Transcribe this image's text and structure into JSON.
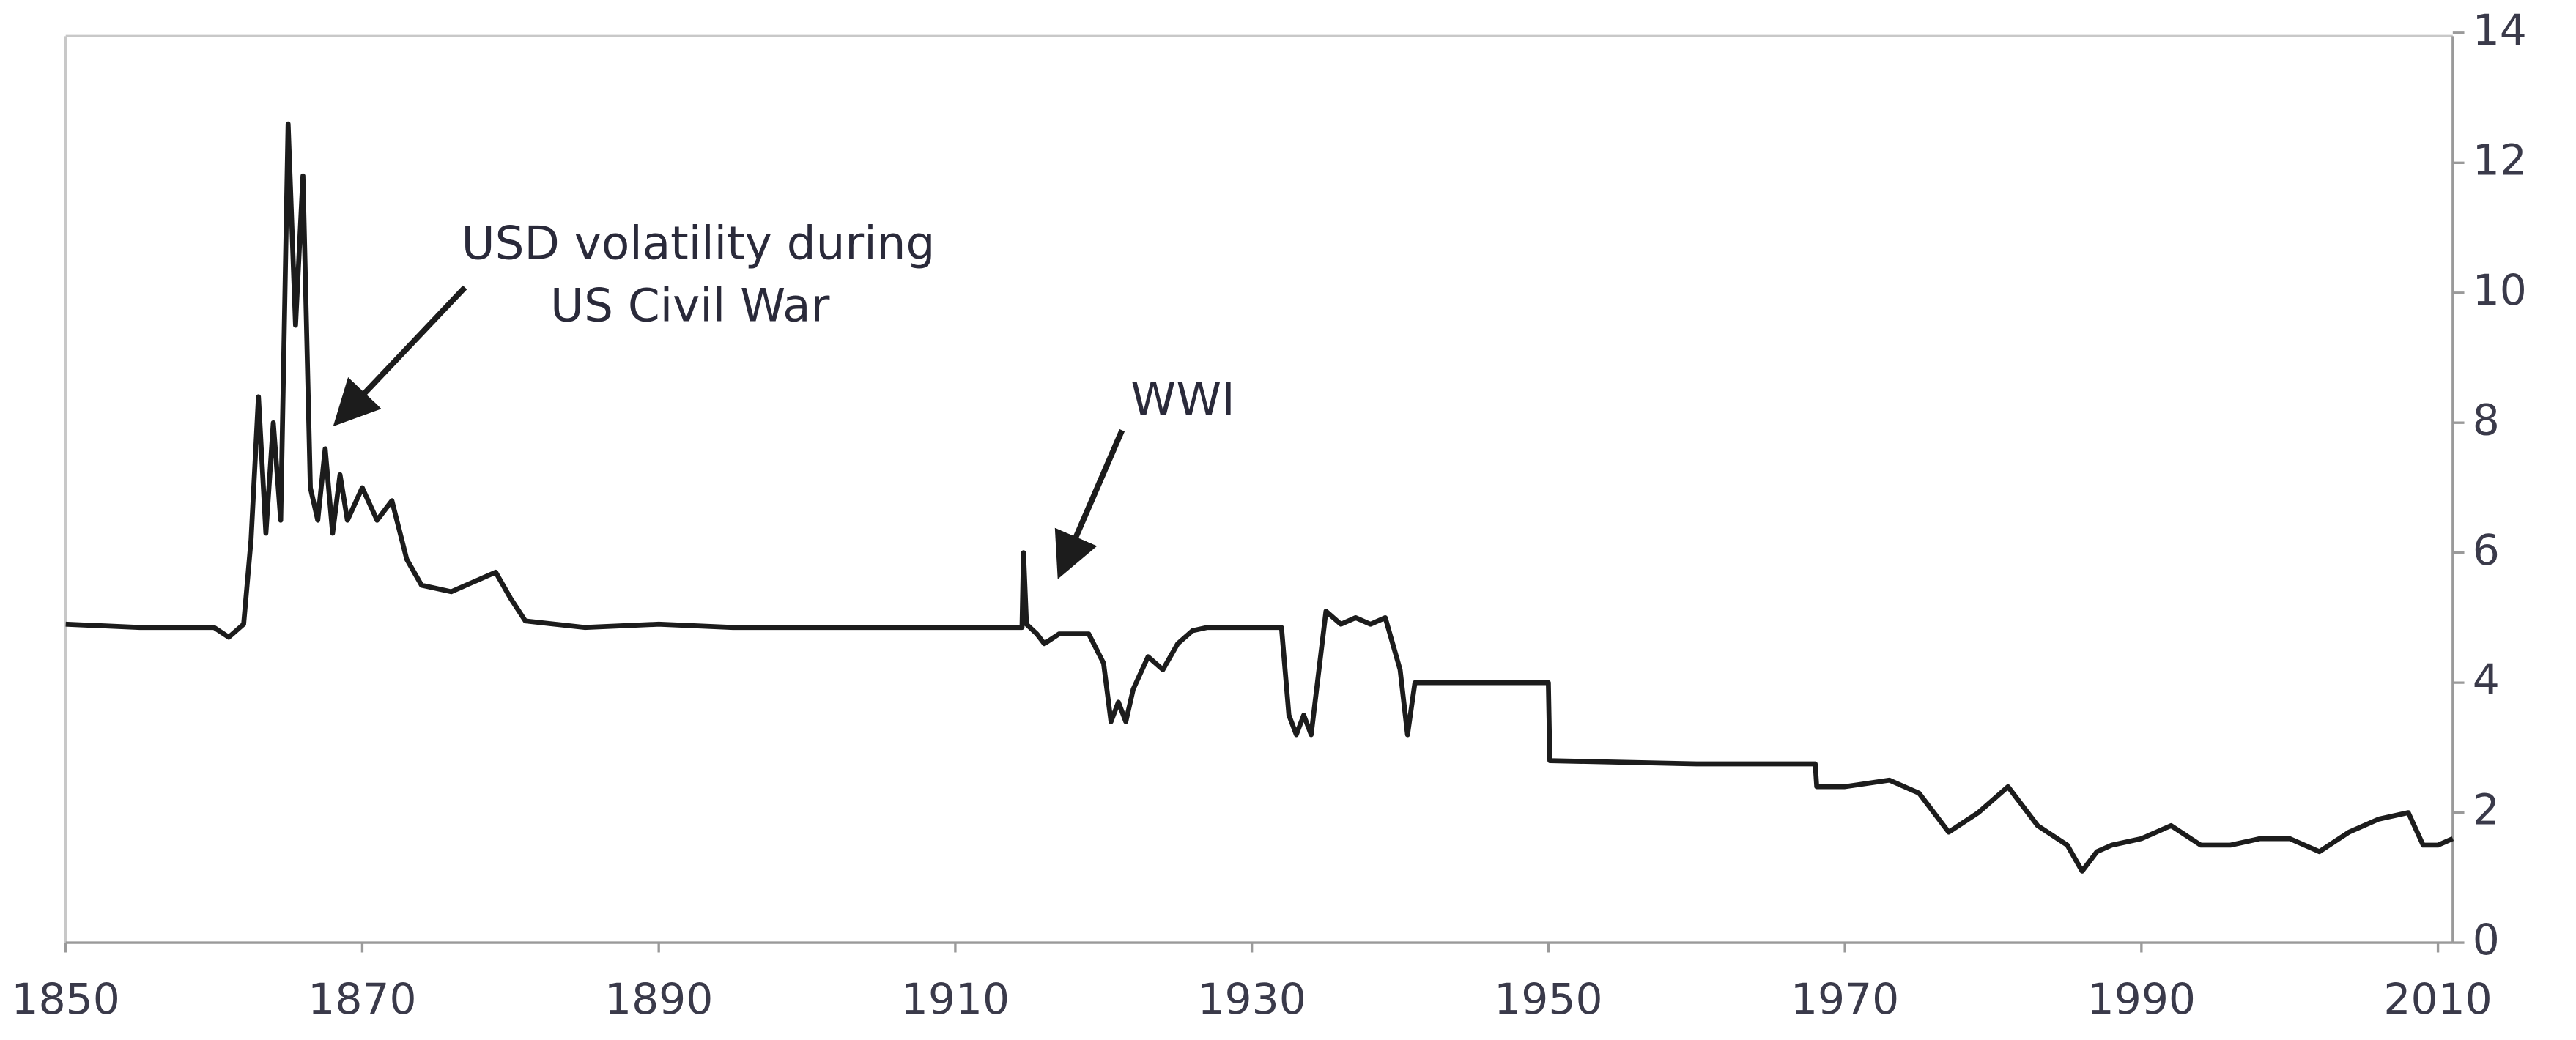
{
  "chart_data": {
    "type": "line",
    "annotations": [
      {
        "lines": [
          "USD volatility during",
          "US Civil War"
        ]
      },
      {
        "lines": [
          "WWI"
        ]
      }
    ],
    "x": [
      1850,
      1855,
      1860,
      1861,
      1862,
      1862.5,
      1863,
      1863.5,
      1864,
      1864.5,
      1865,
      1865.5,
      1866,
      1866.5,
      1867,
      1867.5,
      1868,
      1868.5,
      1869,
      1870,
      1871,
      1872,
      1873,
      1874,
      1876,
      1878,
      1879,
      1880,
      1881,
      1885,
      1890,
      1895,
      1900,
      1905,
      1910,
      1914.5,
      1914.6,
      1914.8,
      1915.5,
      1916,
      1917,
      1919,
      1920,
      1920.5,
      1921,
      1921.5,
      1922,
      1923,
      1924,
      1925,
      1926,
      1927,
      1932,
      1932.5,
      1933,
      1933.5,
      1934,
      1935,
      1936,
      1937,
      1938,
      1939,
      1940,
      1940.5,
      1941,
      1950,
      1950.1,
      1960,
      1968,
      1968.1,
      1970,
      1973,
      1975,
      1977,
      1979,
      1981,
      1983,
      1985,
      1986,
      1987,
      1988,
      1990,
      1992,
      1994,
      1996,
      1998,
      2000,
      2002,
      2004,
      2006,
      2008,
      2009,
      2010,
      2011
    ],
    "series": [
      {
        "color": "#1c1c1c",
        "values": [
          4.9,
          4.85,
          4.85,
          4.7,
          4.9,
          6.2,
          8.4,
          6.3,
          8.0,
          6.5,
          12.6,
          9.5,
          11.8,
          7.0,
          6.5,
          7.6,
          6.3,
          7.2,
          6.5,
          7.0,
          6.5,
          6.8,
          5.9,
          5.5,
          5.4,
          5.6,
          5.7,
          5.3,
          4.95,
          4.85,
          4.9,
          4.85,
          4.85,
          4.85,
          4.85,
          4.85,
          6.0,
          4.9,
          4.75,
          4.6,
          4.75,
          4.75,
          4.3,
          3.4,
          3.7,
          3.4,
          3.9,
          4.4,
          4.2,
          4.6,
          4.8,
          4.85,
          4.85,
          3.5,
          3.2,
          3.5,
          3.2,
          5.1,
          4.9,
          5.0,
          4.9,
          5.0,
          4.2,
          3.2,
          4.0,
          4.0,
          2.8,
          2.75,
          2.75,
          2.4,
          2.4,
          2.5,
          2.3,
          1.7,
          2.0,
          2.4,
          1.8,
          1.5,
          1.1,
          1.4,
          1.5,
          1.6,
          1.8,
          1.5,
          1.5,
          1.6,
          1.6,
          1.4,
          1.7,
          1.9,
          2.0,
          1.5,
          1.5,
          1.6
        ]
      }
    ],
    "xlim": [
      1850,
      2011
    ],
    "xticks": [
      1850,
      1870,
      1890,
      1910,
      1930,
      1950,
      1970,
      1990,
      2010
    ],
    "ylim": [
      0,
      14
    ],
    "yticks": [
      0,
      2,
      4,
      6,
      8,
      10,
      12,
      14
    ]
  }
}
